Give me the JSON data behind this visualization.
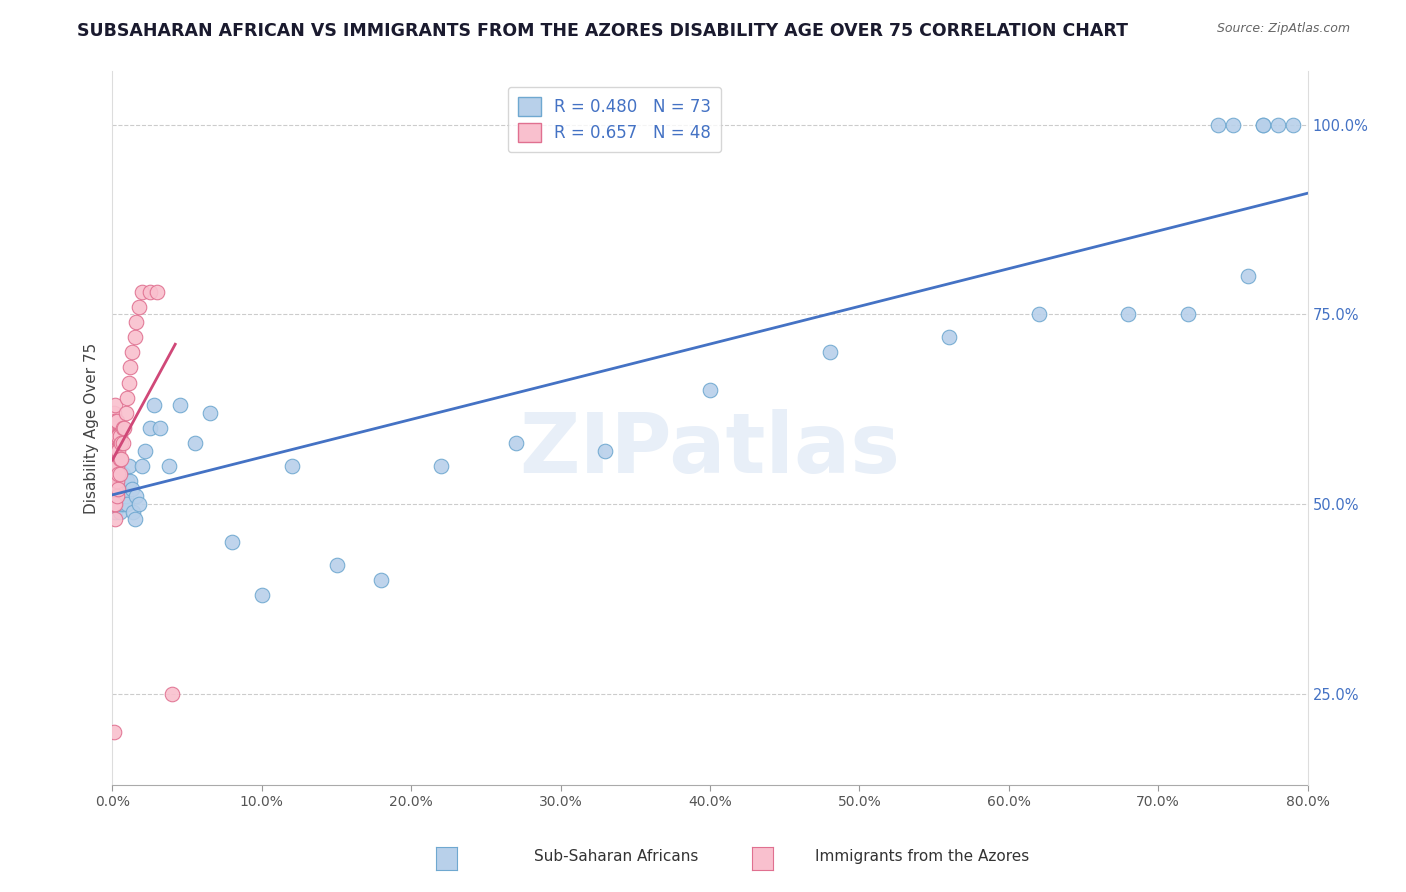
{
  "title": "SUBSAHARAN AFRICAN VS IMMIGRANTS FROM THE AZORES DISABILITY AGE OVER 75 CORRELATION CHART",
  "source": "Source: ZipAtlas.com",
  "xlabel_bottom": "Sub-Saharan Africans",
  "xlabel_bottom2": "Immigrants from the Azores",
  "ylabel": "Disability Age Over 75",
  "watermark": "ZIPatlas",
  "blue_R": 0.48,
  "blue_N": 73,
  "pink_R": 0.657,
  "pink_N": 48,
  "xlim": [
    0.0,
    0.8
  ],
  "ylim": [
    0.13,
    1.07
  ],
  "blue_color": "#b8d0ea",
  "blue_edge": "#6fa8d0",
  "blue_line_color": "#4472c4",
  "pink_color": "#f9c0ce",
  "pink_edge": "#e07090",
  "pink_line_color": "#d04878",
  "title_color": "#1a1a2e",
  "right_axis_color": "#4472c4",
  "blue_scatter_x": [
    0.001,
    0.001,
    0.001,
    0.001,
    0.001,
    0.002,
    0.002,
    0.002,
    0.002,
    0.002,
    0.002,
    0.003,
    0.003,
    0.003,
    0.003,
    0.003,
    0.003,
    0.004,
    0.004,
    0.004,
    0.004,
    0.005,
    0.005,
    0.005,
    0.005,
    0.006,
    0.006,
    0.006,
    0.007,
    0.007,
    0.007,
    0.008,
    0.008,
    0.009,
    0.01,
    0.01,
    0.011,
    0.012,
    0.013,
    0.014,
    0.015,
    0.016,
    0.018,
    0.02,
    0.022,
    0.025,
    0.028,
    0.032,
    0.038,
    0.045,
    0.055,
    0.065,
    0.08,
    0.1,
    0.12,
    0.15,
    0.18,
    0.22,
    0.27,
    0.33,
    0.4,
    0.48,
    0.56,
    0.62,
    0.68,
    0.72,
    0.74,
    0.75,
    0.76,
    0.77,
    0.77,
    0.78,
    0.79
  ],
  "blue_scatter_y": [
    0.5,
    0.52,
    0.53,
    0.54,
    0.56,
    0.49,
    0.51,
    0.52,
    0.54,
    0.55,
    0.57,
    0.5,
    0.51,
    0.52,
    0.53,
    0.55,
    0.56,
    0.5,
    0.51,
    0.53,
    0.55,
    0.49,
    0.51,
    0.53,
    0.54,
    0.5,
    0.52,
    0.54,
    0.51,
    0.52,
    0.54,
    0.5,
    0.52,
    0.51,
    0.5,
    0.53,
    0.55,
    0.53,
    0.52,
    0.49,
    0.48,
    0.51,
    0.5,
    0.55,
    0.57,
    0.6,
    0.63,
    0.6,
    0.55,
    0.63,
    0.58,
    0.62,
    0.45,
    0.38,
    0.55,
    0.42,
    0.4,
    0.55,
    0.58,
    0.57,
    0.65,
    0.7,
    0.72,
    0.75,
    0.75,
    0.75,
    1.0,
    1.0,
    0.8,
    1.0,
    1.0,
    1.0,
    1.0
  ],
  "pink_scatter_x": [
    0.001,
    0.001,
    0.001,
    0.001,
    0.001,
    0.001,
    0.001,
    0.001,
    0.002,
    0.002,
    0.002,
    0.002,
    0.002,
    0.002,
    0.002,
    0.002,
    0.002,
    0.003,
    0.003,
    0.003,
    0.003,
    0.003,
    0.003,
    0.004,
    0.004,
    0.004,
    0.004,
    0.005,
    0.005,
    0.005,
    0.006,
    0.006,
    0.007,
    0.007,
    0.008,
    0.009,
    0.01,
    0.011,
    0.012,
    0.013,
    0.015,
    0.016,
    0.018,
    0.02,
    0.025,
    0.03,
    0.04,
    0.001
  ],
  "pink_scatter_y": [
    0.5,
    0.52,
    0.54,
    0.56,
    0.57,
    0.59,
    0.6,
    0.62,
    0.5,
    0.52,
    0.54,
    0.55,
    0.57,
    0.59,
    0.61,
    0.63,
    0.48,
    0.51,
    0.53,
    0.55,
    0.57,
    0.59,
    0.61,
    0.52,
    0.54,
    0.57,
    0.59,
    0.54,
    0.56,
    0.59,
    0.56,
    0.58,
    0.58,
    0.6,
    0.6,
    0.62,
    0.64,
    0.66,
    0.68,
    0.7,
    0.72,
    0.74,
    0.76,
    0.78,
    0.78,
    0.78,
    0.25,
    0.2
  ]
}
